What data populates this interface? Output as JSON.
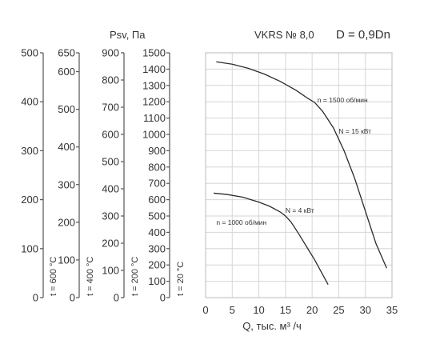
{
  "chart_data": {
    "type": "line",
    "header": {
      "psv_label": "Psv, Па",
      "model": "VKRS № 8,0",
      "diameter": "D = 0,9Dn"
    },
    "xlabel": "Q, тыс. м³ /ч",
    "xlim": [
      0,
      35
    ],
    "x_ticks": [
      0,
      5,
      10,
      15,
      20,
      25,
      30,
      35
    ],
    "pressure_axes": [
      {
        "label": "t = 20 °C",
        "max": 1500,
        "ticks": [
          0,
          100,
          200,
          300,
          400,
          500,
          600,
          700,
          800,
          900,
          1000,
          1100,
          1200,
          1300,
          1400,
          1500
        ]
      },
      {
        "label": "t = 200 °C",
        "max": 900,
        "ticks": [
          0,
          100,
          200,
          300,
          400,
          500,
          600,
          700,
          800,
          900
        ]
      },
      {
        "label": "t = 400 °C",
        "max": 650,
        "ticks": [
          0,
          100,
          200,
          300,
          400,
          500,
          600,
          650
        ]
      },
      {
        "label": "t = 600 °C",
        "max": 500,
        "ticks": [
          0,
          100,
          200,
          300,
          400,
          500
        ]
      }
    ],
    "series": [
      {
        "name": "n = 1500 об/мин",
        "power": "N = 15 кВт",
        "x": [
          2,
          5,
          8,
          11,
          14,
          17,
          19,
          20.5,
          22,
          24,
          26,
          28,
          30,
          32,
          34
        ],
        "y": [
          1445,
          1430,
          1405,
          1370,
          1325,
          1270,
          1225,
          1195,
          1140,
          1040,
          900,
          730,
          530,
          330,
          180
        ]
      },
      {
        "name": "n = 1000 об/мин",
        "power": "N = 4 кВт",
        "x": [
          1.5,
          4,
          7,
          10,
          12,
          14,
          15,
          16,
          17.5,
          19,
          20.5,
          22,
          23
        ],
        "y": [
          640,
          632,
          615,
          585,
          560,
          525,
          500,
          465,
          390,
          310,
          230,
          140,
          80
        ]
      }
    ],
    "annotations": [
      {
        "text": "n = 1500 об/мин",
        "x": 21.0,
        "y": 1195
      },
      {
        "text": "N = 15 кВт",
        "x": 25.0,
        "y": 1005
      },
      {
        "text": "N = 4 кВт",
        "x": 15.0,
        "y": 520
      },
      {
        "text": "n = 1000 об/мин",
        "x": 2.0,
        "y": 445
      }
    ],
    "grid": true
  }
}
